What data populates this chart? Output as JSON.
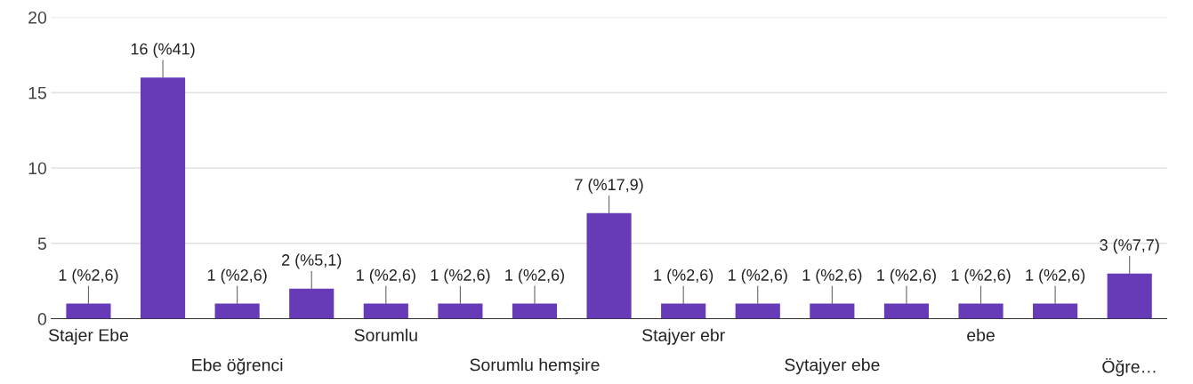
{
  "chart_data": {
    "type": "bar",
    "categories": [
      "Stajer Ebe",
      null,
      "Ebe öğrenci",
      null,
      "Sorumlu",
      null,
      "Sorumlu hemşire",
      null,
      "Stajyer ebr",
      null,
      "Sytajyer ebe",
      null,
      "ebe",
      null,
      "Öğre…"
    ],
    "values": [
      1,
      16,
      1,
      2,
      1,
      1,
      1,
      7,
      1,
      1,
      1,
      1,
      1,
      1,
      3
    ],
    "value_labels": [
      "1 (%2,6)",
      "16 (%41)",
      "1 (%2,6)",
      "2 (%5,1)",
      "1 (%2,6)",
      "1 (%2,6)",
      "1 (%2,6)",
      "7 (%17,9)",
      "1 (%2,6)",
      "1 (%2,6)",
      "1 (%2,6)",
      "1 (%2,6)",
      "1 (%2,6)",
      "1 (%2,6)",
      "3 (%7,7)"
    ],
    "color": "#673ab7",
    "ylim": [
      0,
      20
    ],
    "yticks": [
      0,
      5,
      10,
      15,
      20
    ],
    "grid": "y"
  }
}
